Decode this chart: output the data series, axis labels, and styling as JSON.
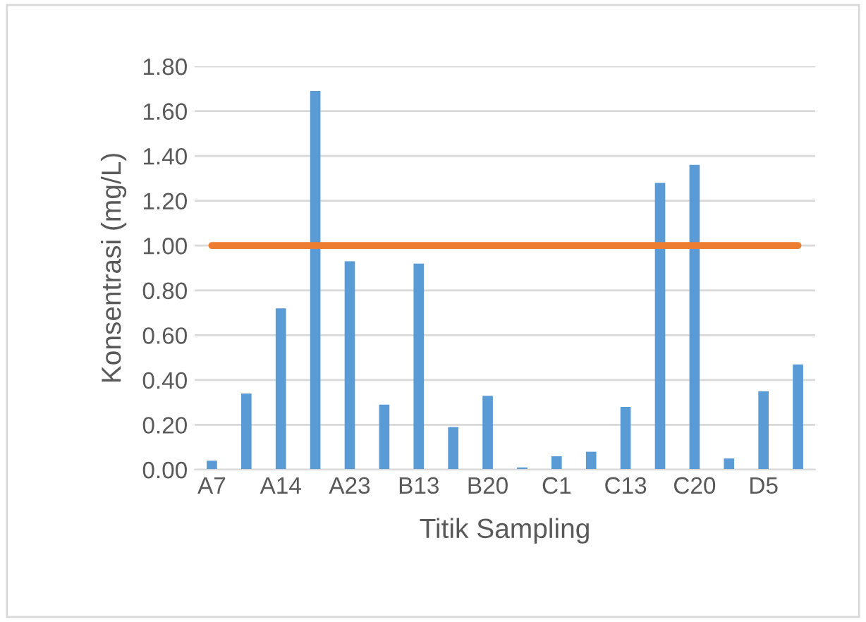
{
  "chart_data": {
    "type": "bar",
    "xlabel": "Titik Sampling",
    "ylabel": "Konsentrasi (mg/L)",
    "categories": [
      "A7",
      null,
      "A14",
      null,
      "A23",
      null,
      "B13",
      null,
      "B20",
      null,
      "C1",
      null,
      "C13",
      null,
      "C20",
      null,
      "D5",
      null
    ],
    "series": [
      {
        "color": "#5b9bd5",
        "values": [
          0.04,
          0.34,
          0.72,
          1.69,
          0.93,
          0.29,
          0.92,
          0.19,
          0.33,
          0.01,
          0.06,
          0.08,
          0.28,
          1.28,
          1.36,
          0.05,
          0.35,
          0.47
        ]
      },
      {
        "type": "line",
        "color": "#ed7d31",
        "values": [
          1.0,
          1.0,
          1.0,
          1.0,
          1.0,
          1.0,
          1.0,
          1.0,
          1.0,
          1.0,
          1.0,
          1.0,
          1.0,
          1.0,
          1.0,
          1.0,
          1.0,
          1.0
        ]
      }
    ],
    "ylim": [
      0,
      1.8
    ],
    "yticks": [
      {
        "value": 0,
        "label": "0.00"
      },
      {
        "value": 0.2,
        "label": "0.20"
      },
      {
        "value": 0.4,
        "label": "0.40"
      },
      {
        "value": 0.6,
        "label": "0.60"
      },
      {
        "value": 0.8,
        "label": "0.80"
      },
      {
        "value": 1.0,
        "label": "1.00"
      },
      {
        "value": 1.2,
        "label": "1.20"
      },
      {
        "value": 1.4,
        "label": "1.40"
      },
      {
        "value": 1.6,
        "label": "1.60"
      },
      {
        "value": 1.8,
        "label": "1.80"
      }
    ],
    "grid": "y",
    "legend": false
  }
}
